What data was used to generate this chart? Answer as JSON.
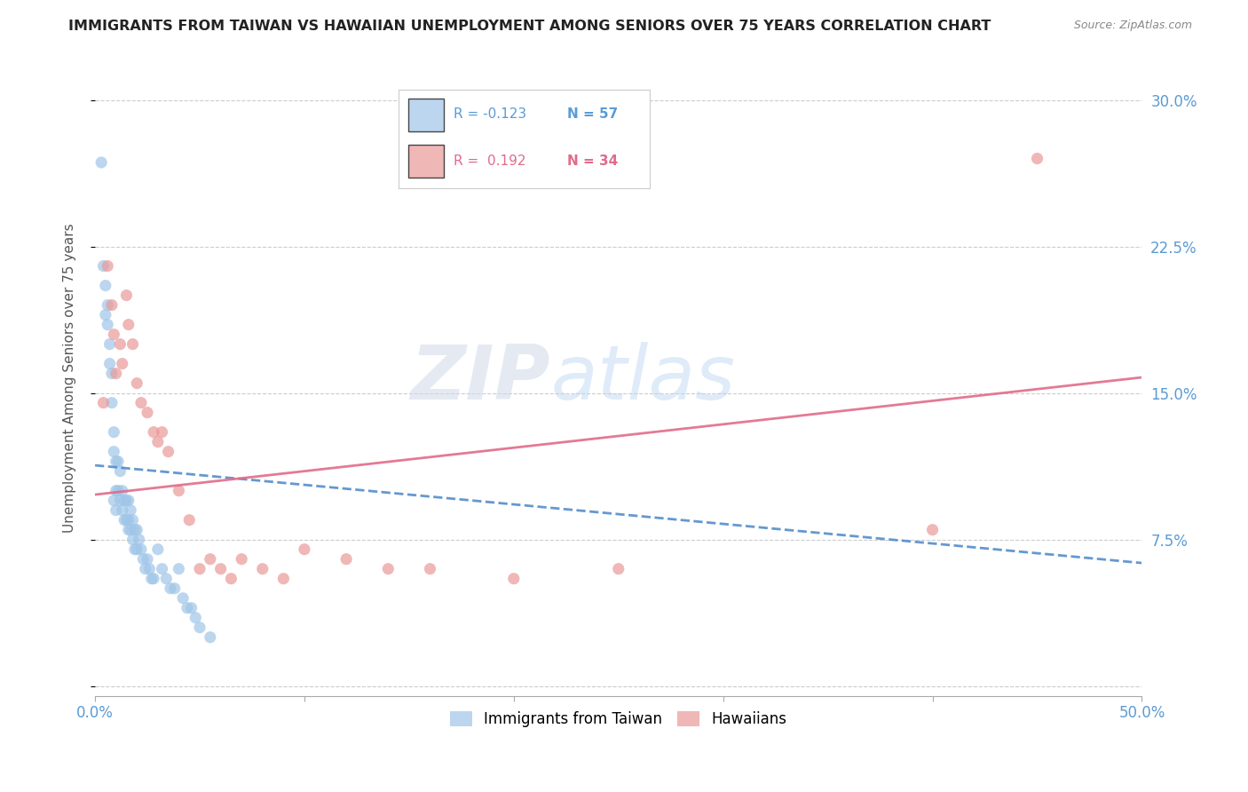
{
  "title": "IMMIGRANTS FROM TAIWAN VS HAWAIIAN UNEMPLOYMENT AMONG SENIORS OVER 75 YEARS CORRELATION CHART",
  "source": "Source: ZipAtlas.com",
  "ylabel": "Unemployment Among Seniors over 75 years",
  "xlim": [
    0.0,
    0.5
  ],
  "ylim": [
    -0.005,
    0.32
  ],
  "x_ticks": [
    0.0,
    0.1,
    0.2,
    0.3,
    0.4,
    0.5
  ],
  "x_tick_labels": [
    "0.0%",
    "",
    "",
    "",
    "",
    "50.0%"
  ],
  "y_ticks": [
    0.0,
    0.075,
    0.15,
    0.225,
    0.3
  ],
  "y_tick_labels_right": [
    "",
    "7.5%",
    "15.0%",
    "22.5%",
    "30.0%"
  ],
  "blue_color": "#9fc5e8",
  "pink_color": "#ea9999",
  "blue_line_color": "#4a86c8",
  "pink_line_color": "#e06c8a",
  "watermark_zip": "ZIP",
  "watermark_atlas": "atlas",
  "taiwan_x": [
    0.003,
    0.004,
    0.005,
    0.005,
    0.006,
    0.006,
    0.007,
    0.007,
    0.008,
    0.008,
    0.009,
    0.009,
    0.009,
    0.01,
    0.01,
    0.01,
    0.011,
    0.011,
    0.012,
    0.012,
    0.013,
    0.013,
    0.014,
    0.014,
    0.015,
    0.015,
    0.016,
    0.016,
    0.016,
    0.017,
    0.017,
    0.018,
    0.018,
    0.019,
    0.019,
    0.02,
    0.02,
    0.021,
    0.022,
    0.023,
    0.024,
    0.025,
    0.026,
    0.027,
    0.028,
    0.03,
    0.032,
    0.034,
    0.036,
    0.038,
    0.04,
    0.042,
    0.044,
    0.046,
    0.048,
    0.05,
    0.055
  ],
  "taiwan_y": [
    0.268,
    0.215,
    0.205,
    0.19,
    0.195,
    0.185,
    0.175,
    0.165,
    0.16,
    0.145,
    0.13,
    0.12,
    0.095,
    0.115,
    0.1,
    0.09,
    0.115,
    0.1,
    0.11,
    0.095,
    0.1,
    0.09,
    0.095,
    0.085,
    0.095,
    0.085,
    0.095,
    0.085,
    0.08,
    0.09,
    0.08,
    0.085,
    0.075,
    0.08,
    0.07,
    0.08,
    0.07,
    0.075,
    0.07,
    0.065,
    0.06,
    0.065,
    0.06,
    0.055,
    0.055,
    0.07,
    0.06,
    0.055,
    0.05,
    0.05,
    0.06,
    0.045,
    0.04,
    0.04,
    0.035,
    0.03,
    0.025
  ],
  "hawaiian_x": [
    0.004,
    0.006,
    0.008,
    0.009,
    0.01,
    0.012,
    0.013,
    0.015,
    0.016,
    0.018,
    0.02,
    0.022,
    0.025,
    0.028,
    0.03,
    0.032,
    0.035,
    0.04,
    0.045,
    0.05,
    0.055,
    0.06,
    0.065,
    0.07,
    0.08,
    0.09,
    0.1,
    0.12,
    0.14,
    0.16,
    0.2,
    0.25,
    0.4,
    0.45
  ],
  "hawaiian_y": [
    0.145,
    0.215,
    0.195,
    0.18,
    0.16,
    0.175,
    0.165,
    0.2,
    0.185,
    0.175,
    0.155,
    0.145,
    0.14,
    0.13,
    0.125,
    0.13,
    0.12,
    0.1,
    0.085,
    0.06,
    0.065,
    0.06,
    0.055,
    0.065,
    0.06,
    0.055,
    0.07,
    0.065,
    0.06,
    0.06,
    0.055,
    0.06,
    0.08,
    0.27
  ],
  "blue_line_x0": 0.0,
  "blue_line_y0": 0.113,
  "blue_line_x1": 0.5,
  "blue_line_y1": 0.063,
  "pink_line_x0": 0.0,
  "pink_line_y0": 0.098,
  "pink_line_x1": 0.5,
  "pink_line_y1": 0.158
}
